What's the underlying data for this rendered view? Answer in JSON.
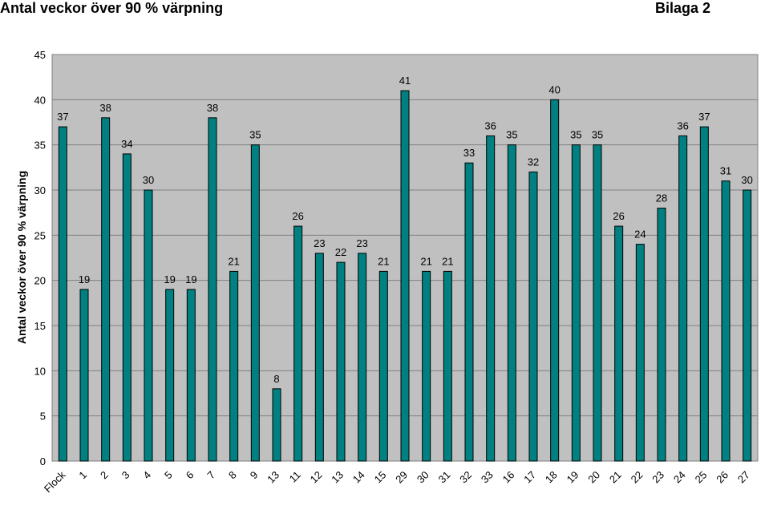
{
  "chart_data": {
    "type": "bar",
    "title": "Antal veckor över 90 % värpning",
    "subtitle": "Bilaga 2",
    "y_label": "Antal veckor över 90 % värpning",
    "categories": [
      "Flock",
      "1",
      "2",
      "3",
      "4",
      "5",
      "6",
      "7",
      "8",
      "9",
      "13",
      "11",
      "12",
      "13",
      "14",
      "15",
      "29",
      "30",
      "31",
      "32",
      "33",
      "16",
      "17",
      "18",
      "19",
      "20",
      "21",
      "22",
      "23",
      "24",
      "25",
      "26",
      "27"
    ],
    "values": [
      37,
      19,
      38,
      34,
      30,
      19,
      19,
      38,
      21,
      35,
      8,
      26,
      23,
      22,
      23,
      21,
      41,
      21,
      21,
      33,
      36,
      35,
      32,
      40,
      35,
      35,
      26,
      24,
      28,
      36,
      37,
      31,
      30
    ],
    "color": "#008080",
    "ylim": [
      0,
      45
    ],
    "yticks": [
      0,
      5,
      10,
      15,
      20,
      25,
      30,
      35,
      40,
      45
    ],
    "grid": true
  }
}
